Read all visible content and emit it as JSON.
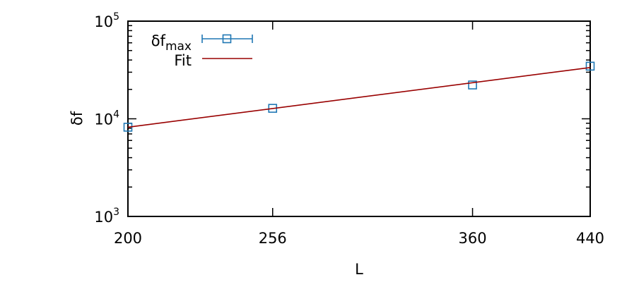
{
  "chart_data": {
    "type": "line",
    "xlabel": "L",
    "ylabel": "δf",
    "xlog": true,
    "ylog": true,
    "xlim": [
      200,
      440
    ],
    "ylim": [
      1000,
      100000
    ],
    "xticks": [
      200,
      256,
      360,
      440
    ],
    "yticks": [
      {
        "value": 1000,
        "label": "10",
        "exp": "3"
      },
      {
        "value": 10000,
        "label": "10",
        "exp": "4"
      },
      {
        "value": 100000,
        "label": "10",
        "exp": "5"
      }
    ],
    "legend": "top-left",
    "series": [
      {
        "name": "δf",
        "name_sub": "max",
        "color": "#1f77b4",
        "marker": "square",
        "x": [
          200,
          256,
          360,
          440
        ],
        "values": [
          8200,
          12800,
          22200,
          34600
        ]
      },
      {
        "name": "Fit",
        "color": "#990000",
        "marker": "none",
        "x": [
          200,
          440
        ],
        "values": [
          8200,
          33500
        ]
      }
    ]
  }
}
